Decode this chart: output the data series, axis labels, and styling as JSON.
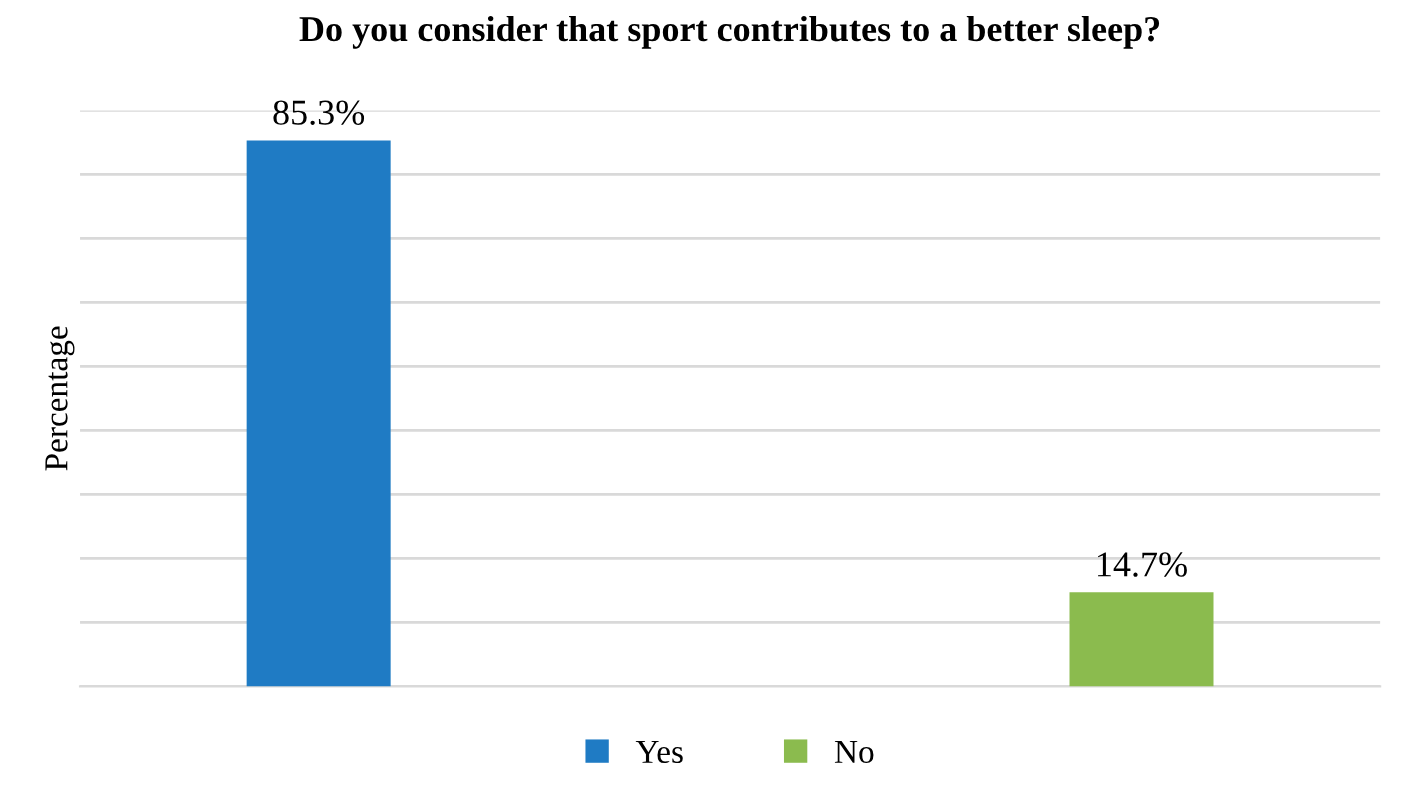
{
  "chart_data": {
    "type": "bar",
    "title": "Do you consider that sport contributes to a better sleep?",
    "ylabel": "Percentage",
    "categories": [
      null,
      null
    ],
    "stacked": true,
    "series": [
      {
        "name": "Yes",
        "color": "#1f7bc4",
        "values": [
          85.3,
          null
        ],
        "value_labels": [
          "85.3%",
          null
        ]
      },
      {
        "name": "No",
        "color": "#8bbb4e",
        "values": [
          null,
          14.7
        ],
        "value_labels": [
          null,
          "14.7%"
        ]
      }
    ],
    "ylim": [
      0,
      90
    ],
    "yticks": [
      {
        "value": 0,
        "label": null
      },
      {
        "value": 10,
        "label": null
      },
      {
        "value": 20,
        "label": null
      },
      {
        "value": 30,
        "label": null
      },
      {
        "value": 40,
        "label": null
      },
      {
        "value": 50,
        "label": null
      },
      {
        "value": 60,
        "label": null
      },
      {
        "value": 70,
        "label": null
      },
      {
        "value": 80,
        "label": null
      },
      {
        "value": 90,
        "label": null
      }
    ],
    "grid": "y",
    "legend": "bottom",
    "tick_labels": false
  }
}
